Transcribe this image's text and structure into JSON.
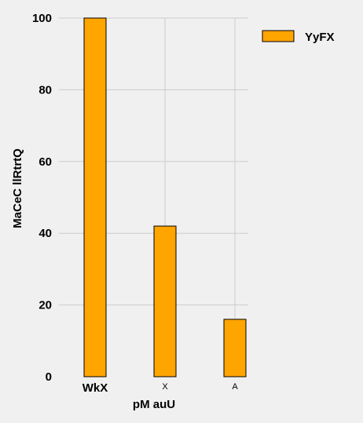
{
  "chart_data": {
    "type": "bar",
    "categories": [
      "WkX",
      "X",
      "A"
    ],
    "series": [
      {
        "name": "YyFX",
        "values": [
          100,
          42,
          16
        ],
        "color": "#ffa500"
      }
    ],
    "xlabel": "pM auU",
    "ylabel": "MaCeC llRtrtQ",
    "ylim": [
      0,
      100
    ],
    "yticks": [
      0,
      20,
      40,
      60,
      80,
      100
    ],
    "grid": true,
    "legend_position": "top-right",
    "bar_edge_color": "#000000",
    "background": "#f0f0f0"
  }
}
